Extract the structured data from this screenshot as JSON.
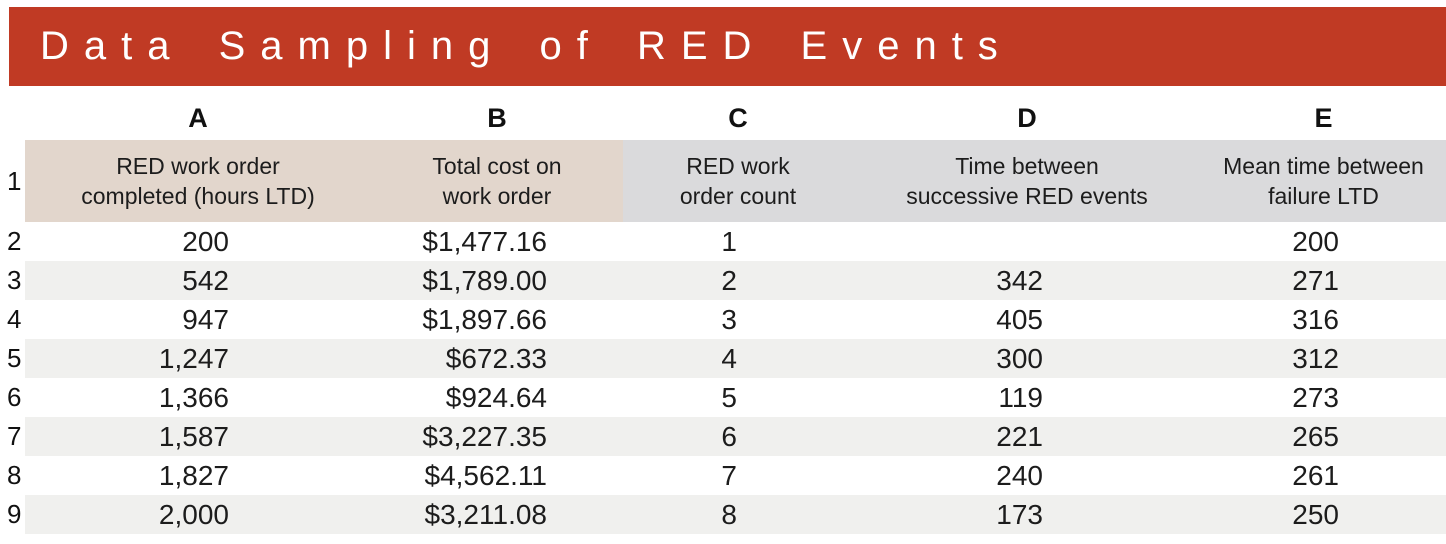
{
  "banner": {
    "title": "Data Sampling of RED Events",
    "background_color": "#c03a24",
    "text_color": "#ffffff"
  },
  "colors": {
    "header_tan": "#e2d6cc",
    "header_gray": "#dadadc",
    "stripe": "#f0f0ee",
    "text": "#1c1c1c"
  },
  "table": {
    "header_row_number": "1",
    "columns": [
      {
        "letter": "A",
        "header": "RED work order\ncompleted (hours LTD)"
      },
      {
        "letter": "B",
        "header": "Total cost on\nwork order"
      },
      {
        "letter": "C",
        "header": "RED work\norder count"
      },
      {
        "letter": "D",
        "header": "Time between\nsuccessive RED events"
      },
      {
        "letter": "E",
        "header": "Mean time between\nfailure  LTD"
      }
    ],
    "rows": [
      {
        "n": "2",
        "cells": [
          "200",
          "$1,477.16",
          "1",
          "",
          "200"
        ]
      },
      {
        "n": "3",
        "cells": [
          "542",
          "$1,789.00",
          "2",
          "342",
          "271"
        ]
      },
      {
        "n": "4",
        "cells": [
          "947",
          "$1,897.66",
          "3",
          "405",
          "316"
        ]
      },
      {
        "n": "5",
        "cells": [
          "1,247",
          "$672.33",
          "4",
          "300",
          "312"
        ]
      },
      {
        "n": "6",
        "cells": [
          "1,366",
          "$924.64",
          "5",
          "119",
          "273"
        ]
      },
      {
        "n": "7",
        "cells": [
          "1,587",
          "$3,227.35",
          "6",
          "221",
          "265"
        ]
      },
      {
        "n": "8",
        "cells": [
          "1,827",
          "$4,562.11",
          "7",
          "240",
          "261"
        ]
      },
      {
        "n": "9",
        "cells": [
          "2,000",
          "$3,211.08",
          "8",
          "173",
          "250"
        ]
      }
    ]
  }
}
